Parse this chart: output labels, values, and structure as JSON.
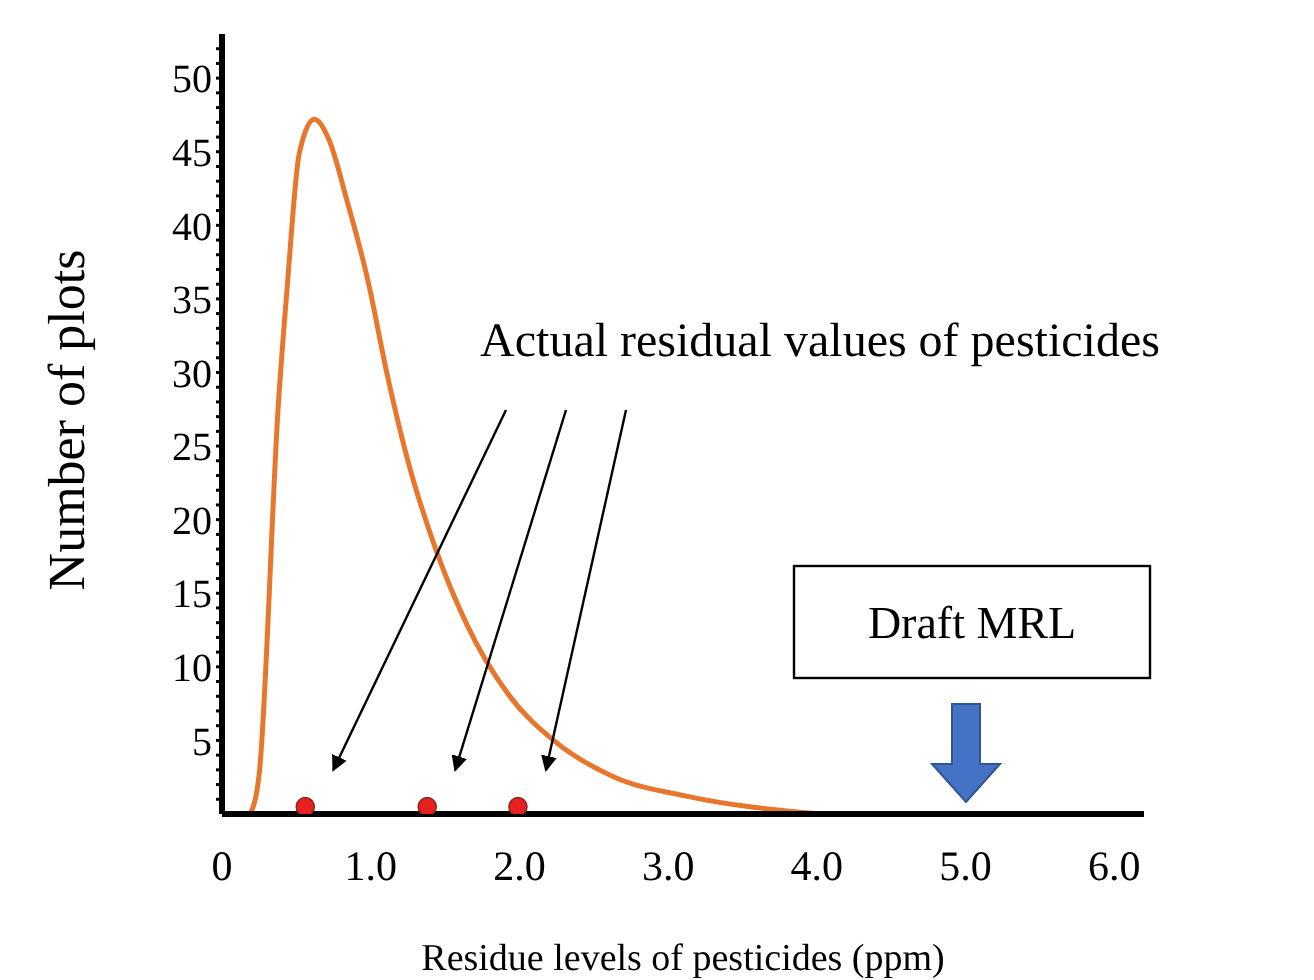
{
  "chart_data": {
    "type": "line",
    "xlabel": "Residue levels of pesticides (ppm)",
    "ylabel": "Number of plots",
    "xlim": [
      0,
      6.2
    ],
    "xticks": [
      {
        "value": 0,
        "label": "0"
      },
      {
        "value": 1,
        "label": "1.0"
      },
      {
        "value": 2,
        "label": "2.0"
      },
      {
        "value": 3,
        "label": "3.0"
      },
      {
        "value": 4,
        "label": "4.0"
      },
      {
        "value": 5,
        "label": "5.0"
      },
      {
        "value": 6,
        "label": "6.0"
      }
    ],
    "ylim": [
      0,
      53
    ],
    "yticks": [
      {
        "value": 1,
        "label": null
      },
      {
        "value": 2,
        "label": null
      },
      {
        "value": 3,
        "label": null
      },
      {
        "value": 4,
        "label": null
      },
      5,
      {
        "value": 6,
        "label": null
      },
      {
        "value": 7,
        "label": null
      },
      {
        "value": 8,
        "label": null
      },
      {
        "value": 9,
        "label": null
      },
      10,
      {
        "value": 11,
        "label": null
      },
      {
        "value": 12,
        "label": null
      },
      {
        "value": 13,
        "label": null
      },
      {
        "value": 14,
        "label": null
      },
      15,
      {
        "value": 16,
        "label": null
      },
      {
        "value": 17,
        "label": null
      },
      {
        "value": 18,
        "label": null
      },
      {
        "value": 19,
        "label": null
      },
      20,
      {
        "value": 21,
        "label": null
      },
      {
        "value": 22,
        "label": null
      },
      {
        "value": 23,
        "label": null
      },
      {
        "value": 24,
        "label": null
      },
      25,
      {
        "value": 26,
        "label": null
      },
      {
        "value": 27,
        "label": null
      },
      {
        "value": 28,
        "label": null
      },
      {
        "value": 29,
        "label": null
      },
      30,
      {
        "value": 31,
        "label": null
      },
      {
        "value": 32,
        "label": null
      },
      {
        "value": 33,
        "label": null
      },
      {
        "value": 34,
        "label": null
      },
      35,
      {
        "value": 36,
        "label": null
      },
      {
        "value": 37,
        "label": null
      },
      {
        "value": 38,
        "label": null
      },
      {
        "value": 39,
        "label": null
      },
      40,
      {
        "value": 41,
        "label": null
      },
      {
        "value": 42,
        "label": null
      },
      {
        "value": 43,
        "label": null
      },
      {
        "value": 44,
        "label": null
      },
      45,
      {
        "value": 46,
        "label": null
      },
      {
        "value": 47,
        "label": null
      },
      {
        "value": 48,
        "label": null
      },
      {
        "value": 49,
        "label": null
      },
      50,
      {
        "value": 51,
        "label": null
      },
      {
        "value": 52,
        "label": null
      }
    ],
    "grid": false,
    "series": [
      {
        "color": "#e8772e",
        "marker": "none",
        "line_style": "solid",
        "x": [
          0.19,
          0.25,
          0.38,
          0.44,
          0.52,
          0.62,
          0.72,
          0.84,
          0.98,
          1.11,
          1.25,
          1.43,
          1.65,
          1.92,
          2.23,
          2.64,
          3.13,
          4.02
        ],
        "values": [
          0,
          2.7,
          28,
          36,
          44.9,
          47.2,
          45.8,
          41.7,
          36.3,
          29.9,
          24,
          18.2,
          12.8,
          8.2,
          5,
          2.5,
          1.2,
          0
        ]
      },
      {
        "type": "scatter",
        "color": "#e8201f",
        "marker": "circle",
        "x": [
          0.56,
          1.38,
          1.99
        ],
        "values": [
          0.5,
          0.5,
          0.5
        ]
      }
    ],
    "annotations": [
      "Actual residual values of pesticides",
      "Draft MRL"
    ]
  }
}
